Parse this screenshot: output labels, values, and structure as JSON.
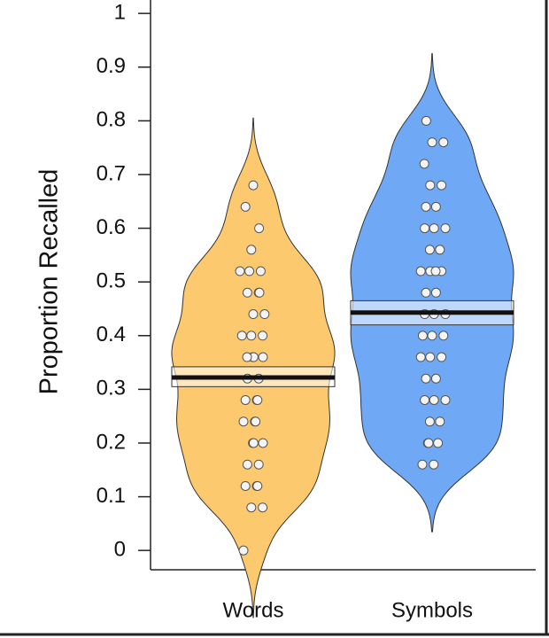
{
  "chart_data": {
    "type": "violin",
    "y_label": "Proportion Recalled",
    "ylim": [
      -0.036,
      1.025
    ],
    "yticks": [
      0,
      0.1,
      0.2,
      0.3,
      0.4,
      0.5,
      0.6,
      0.7,
      0.8,
      0.9,
      1
    ],
    "series": [
      {
        "name": "Words",
        "color": "#fdc96e",
        "values": [
          0,
          0.08,
          0.08,
          0.12,
          0.12,
          0.12,
          0.16,
          0.16,
          0.2,
          0.2,
          0.2,
          0.24,
          0.24,
          0.24,
          0.28,
          0.28,
          0.28,
          0.32,
          0.32,
          0.36,
          0.36,
          0.36,
          0.36,
          0.4,
          0.4,
          0.4,
          0.44,
          0.44,
          0.48,
          0.48,
          0.48,
          0.52,
          0.52,
          0.52,
          0.56,
          0.6,
          0.64,
          0.68
        ],
        "mean": 0.322,
        "ci": [
          0.305,
          0.342
        ]
      },
      {
        "name": "Symbols",
        "color": "#6fa9f6",
        "values": [
          0.16,
          0.16,
          0.2,
          0.2,
          0.2,
          0.24,
          0.24,
          0.28,
          0.28,
          0.28,
          0.32,
          0.32,
          0.36,
          0.36,
          0.36,
          0.4,
          0.4,
          0.4,
          0.44,
          0.44,
          0.44,
          0.48,
          0.48,
          0.52,
          0.52,
          0.52,
          0.52,
          0.56,
          0.56,
          0.6,
          0.6,
          0.6,
          0.64,
          0.64,
          0.68,
          0.68,
          0.72,
          0.76,
          0.76,
          0.8
        ],
        "mean": 0.443,
        "ci": [
          0.42,
          0.465
        ]
      }
    ]
  }
}
